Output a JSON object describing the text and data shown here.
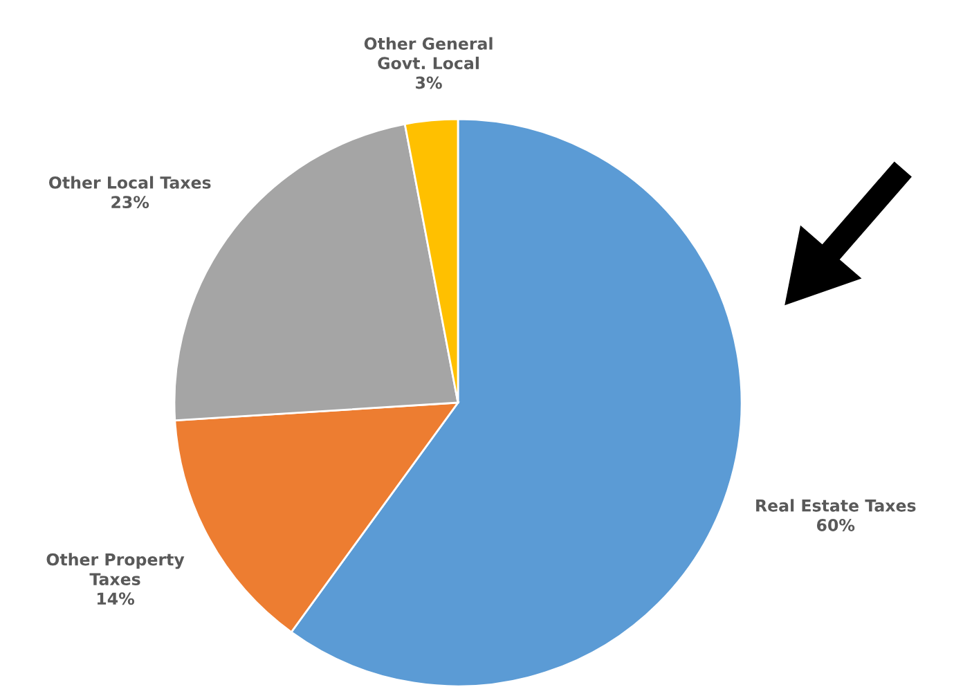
{
  "chart_data": {
    "type": "pie",
    "categories": [
      "Real Estate Taxes",
      "Other Property\nTaxes",
      "Other Local Taxes",
      "Other General\nGovt. Local"
    ],
    "values": [
      60,
      14,
      23,
      3
    ],
    "value_labels": [
      "60%",
      "14%",
      "23%",
      "3%"
    ],
    "colors": [
      "#5b9bd5",
      "#ed7d31",
      "#a5a5a5",
      "#ffc000"
    ],
    "legend": false
  }
}
